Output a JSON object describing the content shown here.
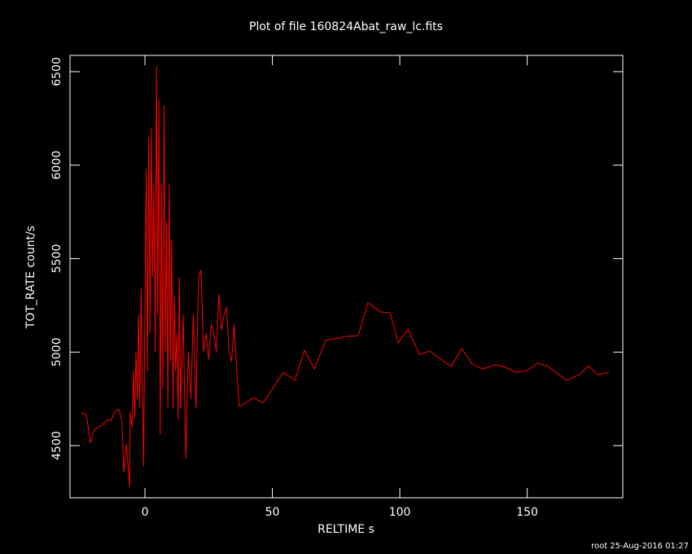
{
  "chart_data": {
    "type": "line",
    "title": "Plot of file 160824Abat_raw_lc.fits",
    "x_label": "RELTIME  s",
    "y_label": "TOT_RATE  count/s",
    "footer": "root 25-Aug-2016 01:27",
    "color": "#ff0000",
    "x": [
      -24.9,
      -23,
      -21.4,
      -19.8,
      -16.9,
      -15,
      -13.4,
      -11.5,
      -10.2,
      -9,
      -8.3,
      -7.3,
      -6.7,
      -6,
      -5.8,
      -5,
      -4.5,
      -4,
      -3.5,
      -3,
      -2.5,
      -2,
      -1.5,
      -1,
      -0.5,
      0,
      0.5,
      1,
      1.5,
      2,
      2.5,
      3,
      3.5,
      4,
      4.5,
      5,
      5.5,
      6,
      6.5,
      7,
      7.5,
      8,
      8.5,
      9,
      9.5,
      10,
      10.5,
      11,
      11.5,
      12,
      12.5,
      13,
      13.5,
      14,
      15,
      16,
      17,
      18,
      19,
      20,
      21,
      22,
      23,
      24,
      25,
      26,
      27,
      28,
      29,
      30,
      31,
      32,
      33,
      34,
      35,
      36,
      37,
      38.3,
      42.5,
      46.3,
      54.3,
      58.8,
      62.6,
      66.5,
      70.9,
      78.9,
      83.7,
      87.5,
      92.3,
      96.2,
      99.4,
      103.2,
      107.7,
      111.8,
      120.1,
      124.3,
      128.4,
      132.6,
      137.1,
      140.9,
      145.4,
      149.8,
      154,
      157.8,
      165.5,
      170.3,
      174.1,
      177.6,
      182.1
    ],
    "values": [
      4674,
      4666,
      4517,
      4587,
      4609,
      4635,
      4635,
      4687,
      4692,
      4626,
      4356,
      4509,
      4404,
      4278,
      4683,
      4600,
      4900,
      4650,
      5000,
      4750,
      5200,
      4700,
      5340,
      4850,
      4390,
      5280,
      5980,
      4900,
      6150,
      5100,
      6200,
      5400,
      5900,
      5000,
      6530,
      5200,
      6350,
      4560,
      5900,
      4800,
      6320,
      5000,
      5700,
      4700,
      5900,
      4950,
      5600,
      4700,
      5300,
      4900,
      5100,
      4640,
      5400,
      4700,
      5200,
      4430,
      5000,
      4750,
      5200,
      4700,
      5400,
      5440,
      5000,
      5100,
      4960,
      5150,
      5100,
      5000,
      5310,
      5120,
      5200,
      5240,
      5000,
      4950,
      5150,
      4900,
      4710,
      4718,
      4757,
      4727,
      4892,
      4849,
      5010,
      4910,
      5062,
      5084,
      5088,
      5263,
      5215,
      5210,
      5049,
      5123,
      4988,
      5005,
      4923,
      5018,
      4936,
      4910,
      4931,
      4923,
      4892,
      4901,
      4940,
      4927,
      4849,
      4879,
      4927,
      4879,
      4892
    ],
    "xlim": [
      -29.4,
      187.5
    ],
    "ylim": [
      4221,
      6587
    ],
    "xticks": [
      0,
      50,
      100,
      150
    ],
    "yticks": [
      4500,
      5000,
      5500,
      6000,
      6500
    ]
  }
}
